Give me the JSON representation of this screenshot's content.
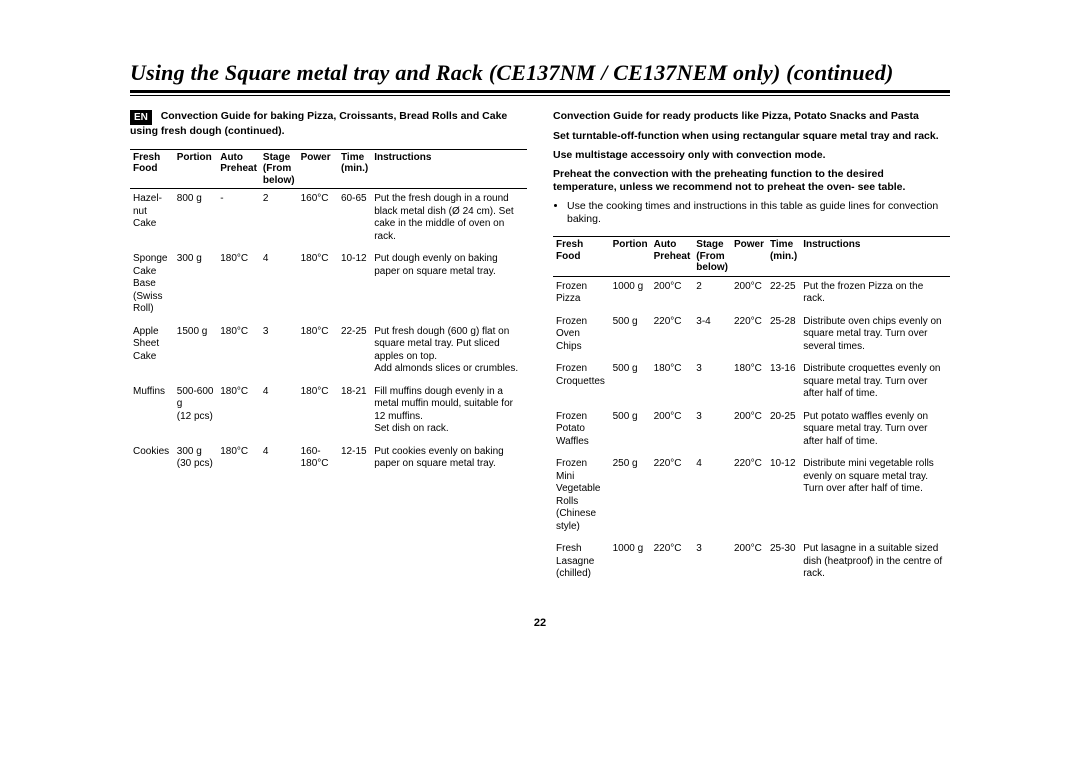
{
  "title": "Using the Square metal tray and Rack (CE137NM / CE137NEM only) (continued)",
  "lang_badge": "EN",
  "page_number": "22",
  "left": {
    "heading": "Convection Guide for baking Pizza, Croissants, Bread Rolls and Cake using fresh dough (continued).",
    "headers": {
      "c0": "Fresh\nFood",
      "c1": "Portion",
      "c2": "Auto\nPreheat",
      "c3": "Stage\n(From\nbelow)",
      "c4": "Power",
      "c5": "Time\n(min.)",
      "c6": "Instructions"
    },
    "rows": [
      {
        "c0": "Hazel-nut\nCake",
        "c1": "800 g",
        "c2": "-",
        "c3": "2",
        "c4": "160°C",
        "c5": "60-65",
        "c6": "Put the fresh dough in a round black metal dish (Ø 24 cm). Set cake in the middle of oven on rack."
      },
      {
        "c0": "Sponge\nCake\nBase\n(Swiss\nRoll)",
        "c1": "300 g",
        "c2": "180°C",
        "c3": "4",
        "c4": "180°C",
        "c5": "10-12",
        "c6": "Put dough evenly on baking paper on square metal tray."
      },
      {
        "c0": "Apple\nSheet\nCake",
        "c1": "1500 g",
        "c2": "180°C",
        "c3": "3",
        "c4": "180°C",
        "c5": "22-25",
        "c6": "Put fresh dough (600 g) flat on square metal tray. Put sliced apples on top.\nAdd almonds slices or crumbles."
      },
      {
        "c0": "Muffins",
        "c1": "500-600 g\n(12 pcs)",
        "c2": "180°C",
        "c3": "4",
        "c4": "180°C",
        "c5": "18-21",
        "c6": "Fill muffins dough evenly in a metal muffin mould, suitable for 12 muffins.\nSet dish on rack."
      },
      {
        "c0": "Cookies",
        "c1": "300 g\n(30 pcs)",
        "c2": "180°C",
        "c3": "4",
        "c4": "160-180°C",
        "c5": "12-15",
        "c6": "Put cookies evenly on baking paper on square metal tray."
      }
    ]
  },
  "right": {
    "heading": "Convection Guide for ready products like Pizza, Potato Snacks and Pasta",
    "note1": "Set turntable-off-function when using rectangular square metal tray and rack.",
    "note2": "Use multistage accessoiry only with convection mode.",
    "note3": "Preheat the convection with the preheating function to the desired temperature, unless we recommend not to preheat the oven- see table.",
    "bullet": "Use the cooking times and instructions in this table as guide lines for convection baking.",
    "headers": {
      "c0": "Fresh Food",
      "c1": "Portion",
      "c2": "Auto\nPreheat",
      "c3": "Stage\n(From\nbelow)",
      "c4": "Power",
      "c5": "Time\n(min.)",
      "c6": "Instructions"
    },
    "rows": [
      {
        "c0": "Frozen\nPizza",
        "c1": "1000 g",
        "c2": "200°C",
        "c3": "2",
        "c4": "200°C",
        "c5": "22-25",
        "c6": "Put the frozen Pizza on the rack."
      },
      {
        "c0": "Frozen\nOven\nChips",
        "c1": "500 g",
        "c2": "220°C",
        "c3": "3-4",
        "c4": "220°C",
        "c5": "25-28",
        "c6": "Distribute oven chips evenly on square metal tray. Turn over several times."
      },
      {
        "c0": "Frozen\nCroquettes",
        "c1": "500 g",
        "c2": "180°C",
        "c3": "3",
        "c4": "180°C",
        "c5": "13-16",
        "c6": "Distribute croquettes evenly on square metal tray. Turn over after half of time."
      },
      {
        "c0": "Frozen\nPotato\nWaffles",
        "c1": "500 g",
        "c2": "200°C",
        "c3": "3",
        "c4": "200°C",
        "c5": "20-25",
        "c6": "Put potato waffles evenly on square metal tray. Turn over after half of time."
      },
      {
        "c0": "Frozen\nMini\nVegetable\nRolls\n(Chinese\nstyle)",
        "c1": "250 g",
        "c2": "220°C",
        "c3": "4",
        "c4": "220°C",
        "c5": "10-12",
        "c6": "Distribute mini vegetable rolls evenly on square metal tray.\nTurn over after half of time."
      },
      {
        "c0": "Fresh\nLasagne\n(chilled)",
        "c1": "1000 g",
        "c2": "220°C",
        "c3": "3",
        "c4": "200°C",
        "c5": "25-30",
        "c6": "Put lasagne in a suitable sized dish (heatproof) in the centre of rack."
      }
    ]
  }
}
